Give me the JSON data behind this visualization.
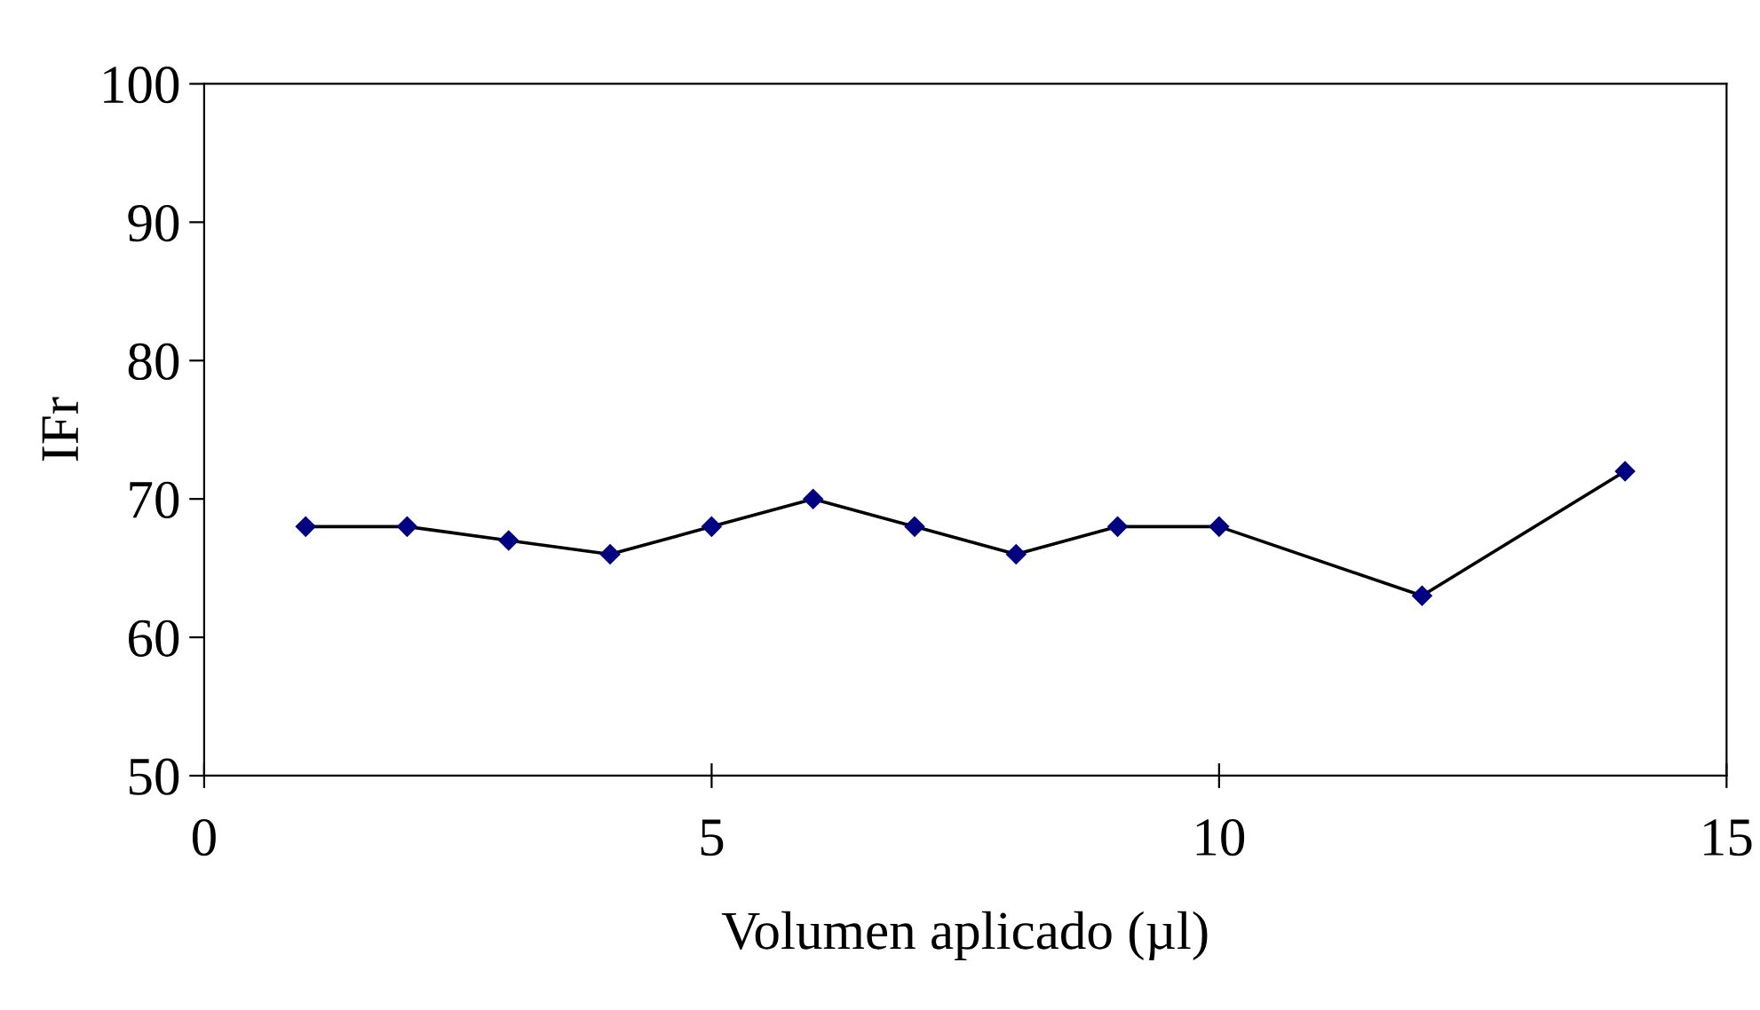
{
  "chart_data": {
    "type": "line",
    "xlabel": "Volumen aplicado (µl)",
    "ylabel": "IFr",
    "x": [
      1,
      2,
      3,
      4,
      5,
      6,
      7,
      8,
      9,
      10,
      12,
      14
    ],
    "series": [
      {
        "color": "#000080",
        "values": [
          68,
          68,
          67,
          66,
          68,
          70,
          68,
          66,
          68,
          68,
          63,
          72
        ]
      }
    ],
    "xlim": [
      0,
      15
    ],
    "xticks": [
      0,
      5,
      10,
      15
    ],
    "ylim": [
      50,
      100
    ],
    "yticks": [
      50,
      60,
      70,
      80,
      90,
      100
    ],
    "grid": false,
    "legend": false,
    "marker": "diamond",
    "line_style": "solid"
  }
}
